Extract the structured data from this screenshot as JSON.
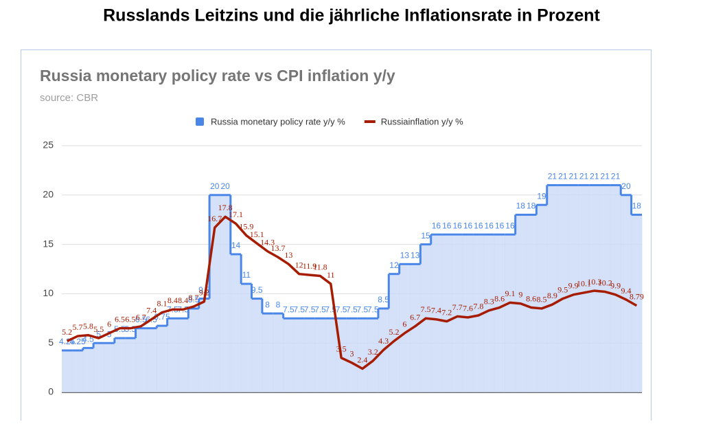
{
  "page_title": "Russlands Leitzins und die jährliche Inflationsrate in Prozent",
  "chart_data": {
    "type": "step-area-line",
    "title": "Russia monetary policy rate vs CPI inflation y/y",
    "subtitle": "source: CBR",
    "legend": "top",
    "grid": true,
    "ylim": [
      0,
      25
    ],
    "yticks": [
      0,
      5,
      10,
      15,
      20,
      25
    ],
    "series": [
      {
        "name": "Russia monetary policy rate y/y %",
        "color": "#4a86e8",
        "fill": "#c9daf8",
        "values": [
          4.25,
          4.25,
          4.5,
          5,
          5,
          5.5,
          5.5,
          6.5,
          6.5,
          6.75,
          7.5,
          7.5,
          8.5,
          9.5,
          20,
          20,
          14,
          11,
          9.5,
          8,
          8,
          7.5,
          7.5,
          7.5,
          7.5,
          7.5,
          7.5,
          7.5,
          7.5,
          7.5,
          8.5,
          12,
          13,
          13,
          15,
          16,
          16,
          16,
          16,
          16,
          16,
          16,
          16,
          18,
          18,
          19,
          21,
          21,
          21,
          21,
          21,
          21,
          21,
          20,
          18
        ]
      },
      {
        "name": "Russiainflation y/y %",
        "color": "#a61c00",
        "values": [
          5.2,
          5.7,
          5.8,
          5.5,
          6.0,
          6.5,
          6.5,
          6.7,
          7.4,
          8.1,
          8.4,
          8.4,
          8.7,
          9.2,
          16.7,
          17.8,
          17.1,
          15.9,
          15.1,
          14.3,
          13.7,
          13,
          12,
          11.9,
          11.8,
          11,
          3.5,
          3,
          2.4,
          3.2,
          4.3,
          5.2,
          6,
          6.7,
          7.5,
          7.4,
          7.2,
          7.7,
          7.6,
          7.8,
          8.3,
          8.6,
          9.1,
          9.0,
          8.6,
          8.5,
          8.9,
          9.5,
          9.9,
          10.1,
          10.3,
          10.2,
          9.9,
          9.4,
          8.79
        ]
      }
    ]
  }
}
